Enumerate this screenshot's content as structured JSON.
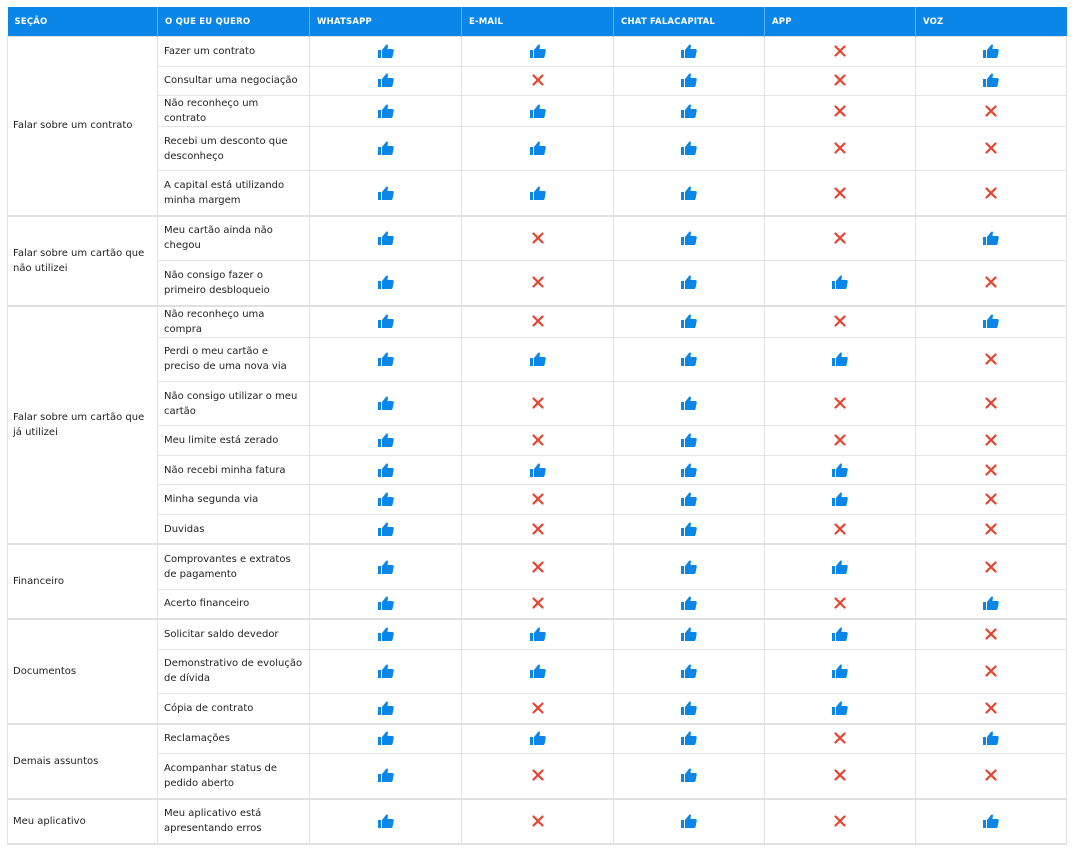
{
  "colors": {
    "header": "#0a86e8",
    "thumb": "#0a86e8",
    "cross": "#e8432f"
  },
  "icons": {
    "yes": "thumbs-up-icon",
    "no": "cross-icon"
  },
  "headers": [
    "SEÇÃO",
    "O QUE EU QUERO",
    "WHATSAPP",
    "E-MAIL",
    "CHAT FALACAPITAL",
    "APP",
    "VOZ"
  ],
  "sections": [
    {
      "label": "Falar sobre um contrato",
      "rows": [
        {
          "item": "Fazer um contrato",
          "channels": [
            true,
            true,
            true,
            false,
            true
          ]
        },
        {
          "item": "Consultar uma negociação",
          "channels": [
            true,
            false,
            true,
            false,
            true
          ]
        },
        {
          "item": "Não reconheço um contrato",
          "channels": [
            true,
            true,
            true,
            false,
            false
          ]
        },
        {
          "item": "Recebi um desconto que desconheço",
          "channels": [
            true,
            true,
            true,
            false,
            false
          ]
        },
        {
          "item": "A capital está utilizando minha margem",
          "channels": [
            true,
            true,
            true,
            false,
            false
          ]
        }
      ]
    },
    {
      "label": "Falar sobre um cartão que não utilizei",
      "rows": [
        {
          "item": "Meu cartão ainda não chegou",
          "channels": [
            true,
            false,
            true,
            false,
            true
          ]
        },
        {
          "item": "Não consigo fazer o primeiro desbloqueio",
          "channels": [
            true,
            false,
            true,
            true,
            false
          ]
        }
      ]
    },
    {
      "label": "Falar sobre um cartão que já utilizei",
      "rows": [
        {
          "item": "Não reconheço uma compra",
          "channels": [
            true,
            false,
            true,
            false,
            true
          ]
        },
        {
          "item": "Perdi o meu cartão e preciso de uma nova via",
          "channels": [
            true,
            true,
            true,
            true,
            false
          ]
        },
        {
          "item": "Não consigo utilizar o meu cartão",
          "channels": [
            true,
            false,
            true,
            false,
            false
          ]
        },
        {
          "item": "Meu limite está zerado",
          "channels": [
            true,
            false,
            true,
            false,
            false
          ]
        },
        {
          "item": "Não recebi minha fatura",
          "channels": [
            true,
            true,
            true,
            true,
            false
          ]
        },
        {
          "item": "Minha segunda via",
          "channels": [
            true,
            false,
            true,
            true,
            false
          ]
        },
        {
          "item": "Duvidas",
          "channels": [
            true,
            false,
            true,
            false,
            false
          ]
        }
      ]
    },
    {
      "label": "Financeiro",
      "rows": [
        {
          "item": "Comprovantes e extratos de pagamento",
          "channels": [
            true,
            false,
            true,
            true,
            false
          ]
        },
        {
          "item": "Acerto financeiro",
          "channels": [
            true,
            false,
            true,
            false,
            true
          ]
        }
      ]
    },
    {
      "label": "Documentos",
      "rows": [
        {
          "item": "Solicitar saldo devedor",
          "channels": [
            true,
            true,
            true,
            true,
            false
          ]
        },
        {
          "item": "Demonstrativo de evolução de dívida",
          "channels": [
            true,
            true,
            true,
            true,
            false
          ]
        },
        {
          "item": "Cópia de contrato",
          "channels": [
            true,
            false,
            true,
            true,
            false
          ]
        }
      ]
    },
    {
      "label": "Demais assuntos",
      "rows": [
        {
          "item": "Reclamações",
          "channels": [
            true,
            true,
            true,
            false,
            true
          ]
        },
        {
          "item": "Acompanhar status de pedido aberto",
          "channels": [
            true,
            false,
            true,
            false,
            false
          ]
        }
      ]
    },
    {
      "label": "Meu aplicativo",
      "rows": [
        {
          "item": "Meu aplicativo está apresentando erros",
          "channels": [
            true,
            false,
            true,
            false,
            true
          ]
        }
      ]
    }
  ]
}
